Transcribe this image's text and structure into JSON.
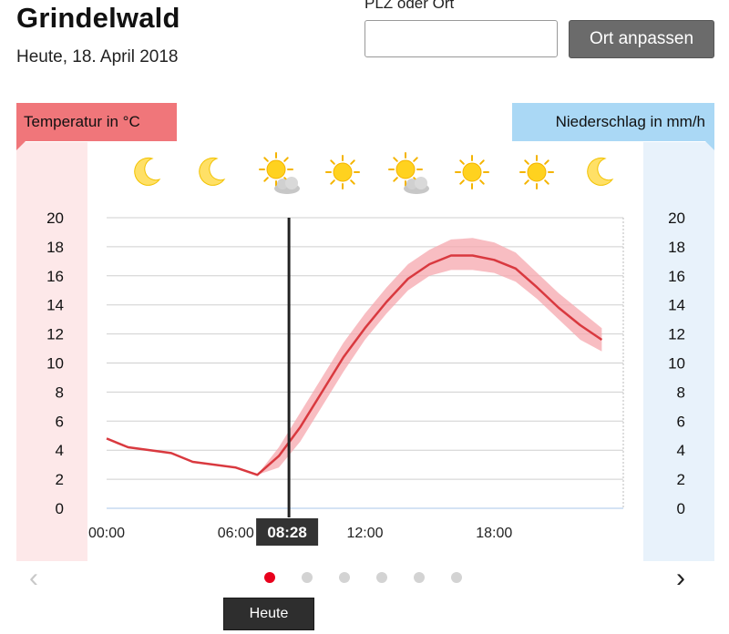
{
  "location": {
    "title": "Grindelwald",
    "date": "Heute, 18. April 2018"
  },
  "search": {
    "label": "PLZ oder Ort",
    "value": "",
    "placeholder": "",
    "button_label": "Ort anpassen"
  },
  "legend": {
    "temperature": "Temperatur in °C",
    "precipitation": "Niederschlag in mm/h"
  },
  "icons": [
    "moon-icon",
    "moon-icon",
    "sun-cloud-icon",
    "sun-icon",
    "sun-cloud-icon",
    "sun-icon",
    "sun-icon",
    "moon-icon"
  ],
  "now_label": "08:28",
  "heute_label": "Heute",
  "pager": {
    "count": 6,
    "active": 0
  },
  "colors": {
    "temp_line": "#d9393f",
    "temp_band": "#f5a7ad",
    "temp_bg": "#fde8e9",
    "rain_bg": "#e8f2fb",
    "dot_active": "#e8001c"
  },
  "chart_data": {
    "type": "line",
    "x_ticks": [
      "00:00",
      "06:00",
      "12:00",
      "18:00"
    ],
    "y_ticks_left": [
      "20",
      "18",
      "16",
      "14",
      "12",
      "10",
      "8",
      "6",
      "4",
      "2",
      "0"
    ],
    "y_ticks_right": [
      "20",
      "18",
      "16",
      "14",
      "12",
      "10",
      "8",
      "6",
      "4",
      "2",
      "0"
    ],
    "ylim": [
      0,
      20
    ],
    "xlim_hours": [
      0,
      24
    ],
    "now_hour": 8.47,
    "series": [
      {
        "hours": [
          0,
          1,
          3,
          4,
          6,
          7,
          8,
          9,
          10,
          11,
          12,
          13,
          14,
          15,
          16,
          17,
          18,
          19,
          20,
          21,
          22,
          23
        ],
        "values": [
          4.8,
          4.2,
          3.8,
          3.2,
          2.8,
          2.3,
          3.6,
          5.6,
          8.0,
          10.4,
          12.4,
          14.2,
          15.8,
          16.8,
          17.4,
          17.4,
          17.1,
          16.5,
          15.2,
          13.8,
          12.6,
          11.6
        ],
        "lower": [
          4.8,
          4.2,
          3.8,
          3.2,
          2.8,
          2.3,
          2.8,
          4.6,
          7.0,
          9.4,
          11.6,
          13.4,
          15.0,
          16.0,
          16.4,
          16.4,
          16.2,
          15.6,
          14.4,
          13.0,
          11.6,
          10.8
        ],
        "upper": [
          4.8,
          4.2,
          3.8,
          3.2,
          2.8,
          2.3,
          4.2,
          6.6,
          9.0,
          11.4,
          13.4,
          15.2,
          16.8,
          17.8,
          18.5,
          18.6,
          18.3,
          17.6,
          16.2,
          14.8,
          13.6,
          12.4
        ]
      }
    ]
  }
}
